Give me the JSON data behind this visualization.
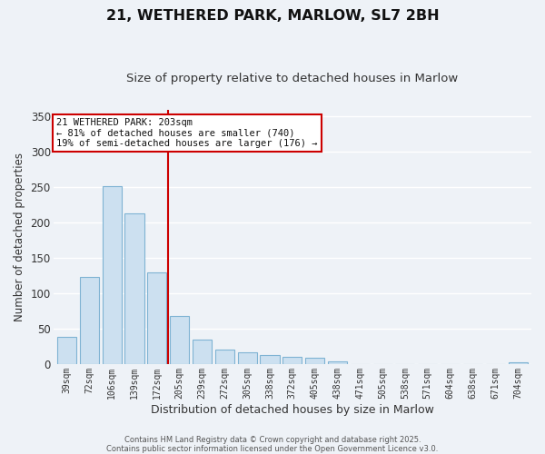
{
  "title": "21, WETHERED PARK, MARLOW, SL7 2BH",
  "subtitle": "Size of property relative to detached houses in Marlow",
  "xlabel": "Distribution of detached houses by size in Marlow",
  "ylabel": "Number of detached properties",
  "bar_labels": [
    "39sqm",
    "72sqm",
    "106sqm",
    "139sqm",
    "172sqm",
    "205sqm",
    "239sqm",
    "272sqm",
    "305sqm",
    "338sqm",
    "372sqm",
    "405sqm",
    "438sqm",
    "471sqm",
    "505sqm",
    "538sqm",
    "571sqm",
    "604sqm",
    "638sqm",
    "671sqm",
    "704sqm"
  ],
  "bar_values": [
    38,
    123,
    252,
    213,
    130,
    68,
    34,
    20,
    16,
    13,
    10,
    9,
    4,
    0,
    0,
    0,
    0,
    0,
    0,
    0,
    3
  ],
  "bar_color": "#cce0f0",
  "bar_edge_color": "#7fb3d3",
  "vline_color": "#cc0000",
  "ylim": [
    0,
    360
  ],
  "yticks": [
    0,
    50,
    100,
    150,
    200,
    250,
    300,
    350
  ],
  "annotation_title": "21 WETHERED PARK: 203sqm",
  "annotation_line1": "← 81% of detached houses are smaller (740)",
  "annotation_line2": "19% of semi-detached houses are larger (176) →",
  "annotation_box_color": "#ffffff",
  "annotation_box_edge": "#cc0000",
  "footer1": "Contains HM Land Registry data © Crown copyright and database right 2025.",
  "footer2": "Contains public sector information licensed under the Open Government Licence v3.0.",
  "background_color": "#eef2f7",
  "grid_color": "#ffffff",
  "vline_bar_index": 5
}
